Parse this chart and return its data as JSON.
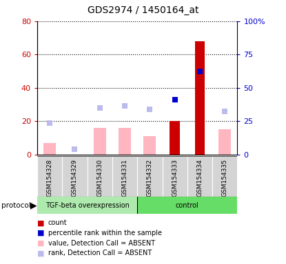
{
  "title": "GDS2974 / 1450164_at",
  "samples": [
    "GSM154328",
    "GSM154329",
    "GSM154330",
    "GSM154331",
    "GSM154332",
    "GSM154333",
    "GSM154334",
    "GSM154335"
  ],
  "red_bars": [
    null,
    null,
    null,
    null,
    null,
    20,
    68,
    null
  ],
  "pink_bars": [
    7,
    null,
    16,
    16,
    11,
    null,
    null,
    15
  ],
  "blue_squares_right": [
    null,
    null,
    null,
    null,
    null,
    41,
    62,
    null
  ],
  "lavender_squares_left": [
    19,
    3,
    28,
    29,
    27,
    null,
    null,
    26
  ],
  "ylim_left": [
    0,
    80
  ],
  "ylim_right": [
    0,
    100
  ],
  "yticks_left": [
    0,
    20,
    40,
    60,
    80
  ],
  "ytick_labels_left": [
    "0",
    "20",
    "40",
    "60",
    "80"
  ],
  "yticks_right": [
    0,
    25,
    50,
    75,
    100
  ],
  "ytick_labels_right": [
    "0",
    "25",
    "50",
    "75",
    "100%"
  ],
  "left_axis_color": "#CC0000",
  "right_axis_color": "#0000CC",
  "tgf_color": "#AEEAAE",
  "control_color": "#66DD66",
  "legend_items": [
    {
      "label": "count",
      "color": "#CC0000"
    },
    {
      "label": "percentile rank within the sample",
      "color": "#0000CC"
    },
    {
      "label": "value, Detection Call = ABSENT",
      "color": "#FFB6C1"
    },
    {
      "label": "rank, Detection Call = ABSENT",
      "color": "#BBBBEE"
    }
  ]
}
